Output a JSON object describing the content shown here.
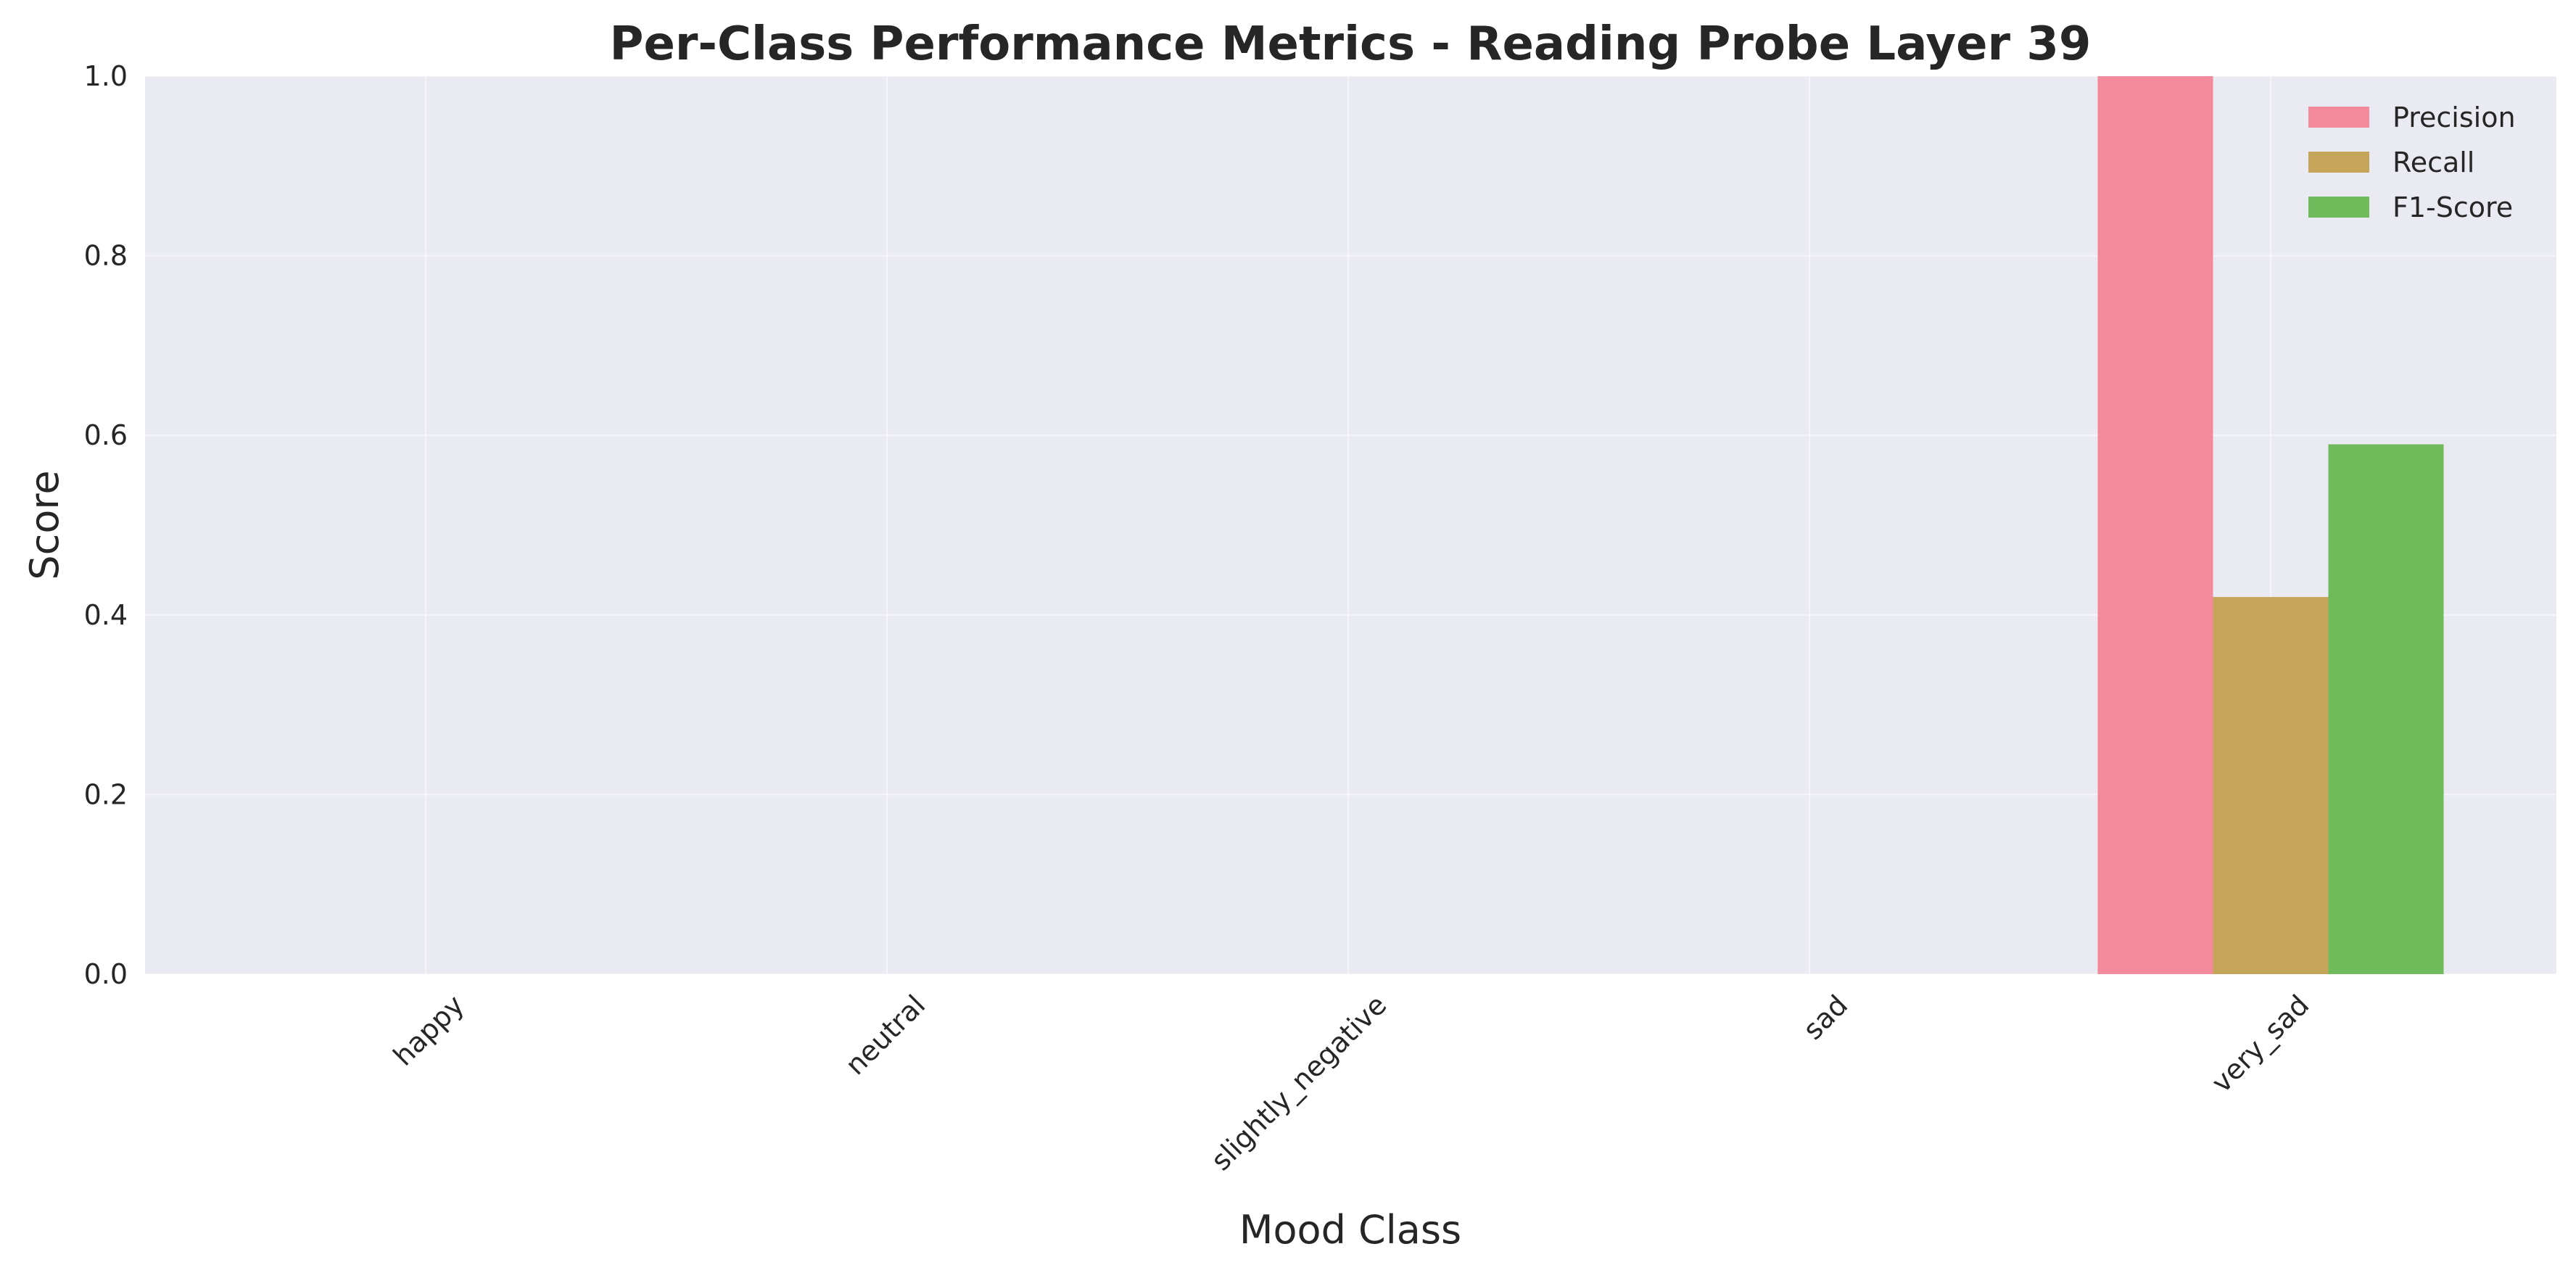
{
  "chart_data": {
    "type": "bar",
    "title": "Per-Class Performance Metrics - Reading Probe Layer 39",
    "xlabel": "Mood Class",
    "ylabel": "Score",
    "categories": [
      "happy",
      "neutral",
      "slightly_negative",
      "sad",
      "very_sad"
    ],
    "series": [
      {
        "name": "Precision",
        "values": [
          0,
          0,
          0,
          0,
          1.0
        ],
        "color": "#f28a9c"
      },
      {
        "name": "Recall",
        "values": [
          0,
          0,
          0,
          0,
          0.42
        ],
        "color": "#c4a55a"
      },
      {
        "name": "F1-Score",
        "values": [
          0,
          0,
          0,
          0,
          0.59
        ],
        "color": "#6fba5a"
      }
    ],
    "ylim": [
      0,
      1.0
    ],
    "yticks": [
      "0.0",
      "0.2",
      "0.4",
      "0.6",
      "0.8",
      "1.0"
    ],
    "grid": true,
    "legend_position": "top-right",
    "plot_background": "#eaeaf2"
  }
}
